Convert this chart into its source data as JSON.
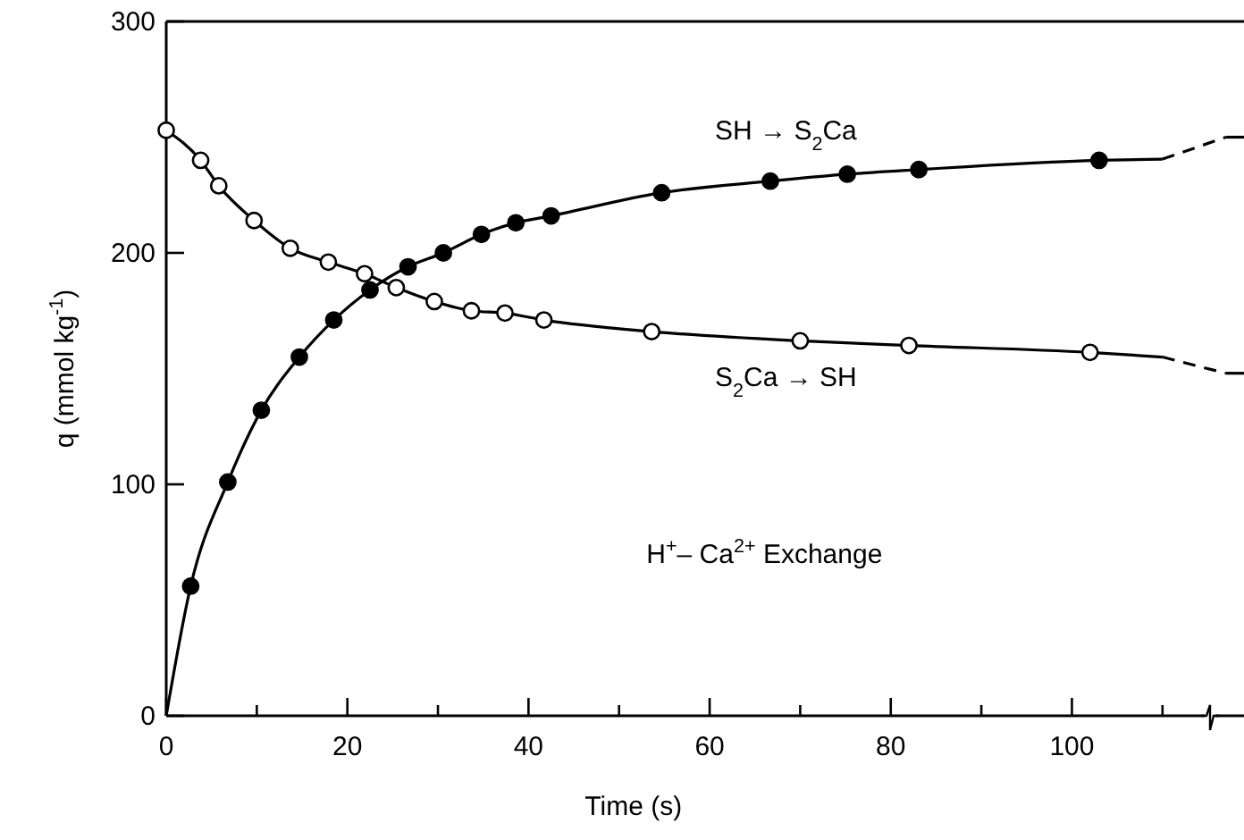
{
  "chart_data": {
    "type": "line",
    "xlabel": "Time (s)",
    "ylabel": "q (mmol kg$^{-1}$)",
    "xlim": [
      0,
      119
    ],
    "ylim": [
      0,
      300
    ],
    "xticks": [
      0,
      {
        "value": 10,
        "label": null
      },
      20,
      {
        "value": 30,
        "label": null
      },
      40,
      {
        "value": 50,
        "label": null
      },
      60,
      {
        "value": 70,
        "label": null
      },
      80,
      {
        "value": 90,
        "label": null
      },
      100,
      {
        "value": 110,
        "label": null
      }
    ],
    "yticks": [
      0,
      100,
      200,
      300
    ],
    "grid": false,
    "marker": "none",
    "line_style": "solid",
    "series": [
      {
        "color": "#000000",
        "x": [
          0,
          2.7,
          6.8,
          10.5,
          14.7,
          18.5,
          22.5,
          26.7,
          30.6,
          34.8,
          38.6,
          42.5,
          54.7,
          66.7,
          75.2,
          83.1,
          103,
          110
        ],
        "values": [
          0,
          56,
          101,
          132,
          155,
          171,
          184,
          194,
          200,
          208,
          213,
          216,
          226,
          231,
          234,
          236,
          240,
          240.5
        ]
      },
      {
        "color": "#000000",
        "x": [
          0,
          3.8,
          5.8,
          9.7,
          13.7,
          17.9,
          21.9,
          25.4,
          29.6,
          33.7,
          37.4,
          41.7,
          53.6,
          70,
          82,
          102,
          110
        ],
        "values": [
          253,
          240,
          229,
          214,
          202,
          196,
          191,
          185,
          179,
          175,
          174,
          171,
          166,
          162,
          160,
          157,
          155
        ]
      },
      {
        "color": "#000000",
        "line_style": "dashed",
        "x": [
          110,
          117
        ],
        "values": [
          240.5,
          250
        ]
      },
      {
        "color": "#000000",
        "line_style": "dashed",
        "x": [
          110,
          117
        ],
        "values": [
          155,
          148
        ]
      },
      {
        "color": "#000000",
        "x": [
          117,
          119
        ],
        "values": [
          250,
          250
        ]
      },
      {
        "color": "#000000",
        "x": [
          117,
          119
        ],
        "values": [
          148,
          148
        ]
      },
      {
        "type": "scatter",
        "color": "#000000",
        "marker": "circle",
        "x": [
          2.7,
          6.8,
          10.5,
          14.7,
          18.5,
          22.5,
          26.7,
          30.6,
          34.8,
          38.6,
          42.5,
          54.7,
          66.7,
          75.2,
          83.1,
          103
        ],
        "values": [
          56,
          101,
          132,
          155,
          171,
          184,
          194,
          200,
          208,
          213,
          216,
          226,
          231,
          234,
          236,
          240
        ]
      },
      {
        "type": "scatter",
        "color": "#ffffff",
        "marker": "circle",
        "x": [
          0,
          3.8,
          5.8,
          9.7,
          13.7,
          17.9,
          21.9,
          25.4,
          29.6,
          33.7,
          37.4,
          41.7,
          53.6,
          70,
          82,
          102
        ],
        "values": [
          253,
          240,
          229,
          214,
          202,
          196,
          191,
          185,
          179,
          175,
          174,
          171,
          166,
          162,
          160,
          157
        ]
      }
    ],
    "annotations": [
      "SH → S$_{2}$Ca",
      "S$_{2}$Ca → SH",
      "H$^{+}$– Ca$^{2+}$ Exchange"
    ]
  }
}
